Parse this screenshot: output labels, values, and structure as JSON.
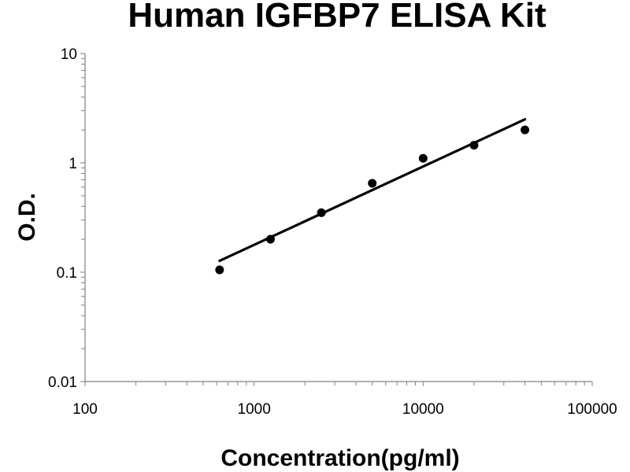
{
  "chart_data": {
    "type": "scatter",
    "title": "Human IGFBP7 ELISA Kit",
    "xlabel": "Concentration(pg/ml)",
    "ylabel": "O.D.",
    "x_scale": "log",
    "y_scale": "log",
    "xlim": [
      100,
      100000
    ],
    "ylim": [
      0.01,
      10
    ],
    "x_ticks": [
      "100",
      "1000",
      "10000",
      "100000"
    ],
    "y_ticks": [
      "10",
      "1",
      "0.1",
      "0.01"
    ],
    "grid": false,
    "legend": "none",
    "colors": {
      "points": "#000000",
      "line": "#000000",
      "axis": "#808080"
    },
    "points": [
      {
        "x": 625,
        "y": 0.105
      },
      {
        "x": 1250,
        "y": 0.2
      },
      {
        "x": 2500,
        "y": 0.35
      },
      {
        "x": 5000,
        "y": 0.65
      },
      {
        "x": 10000,
        "y": 1.1
      },
      {
        "x": 20000,
        "y": 1.45
      },
      {
        "x": 40000,
        "y": 2.0
      }
    ],
    "trendline": {
      "x": [
        625,
        40000
      ],
      "y": [
        0.127,
        2.5
      ]
    }
  }
}
